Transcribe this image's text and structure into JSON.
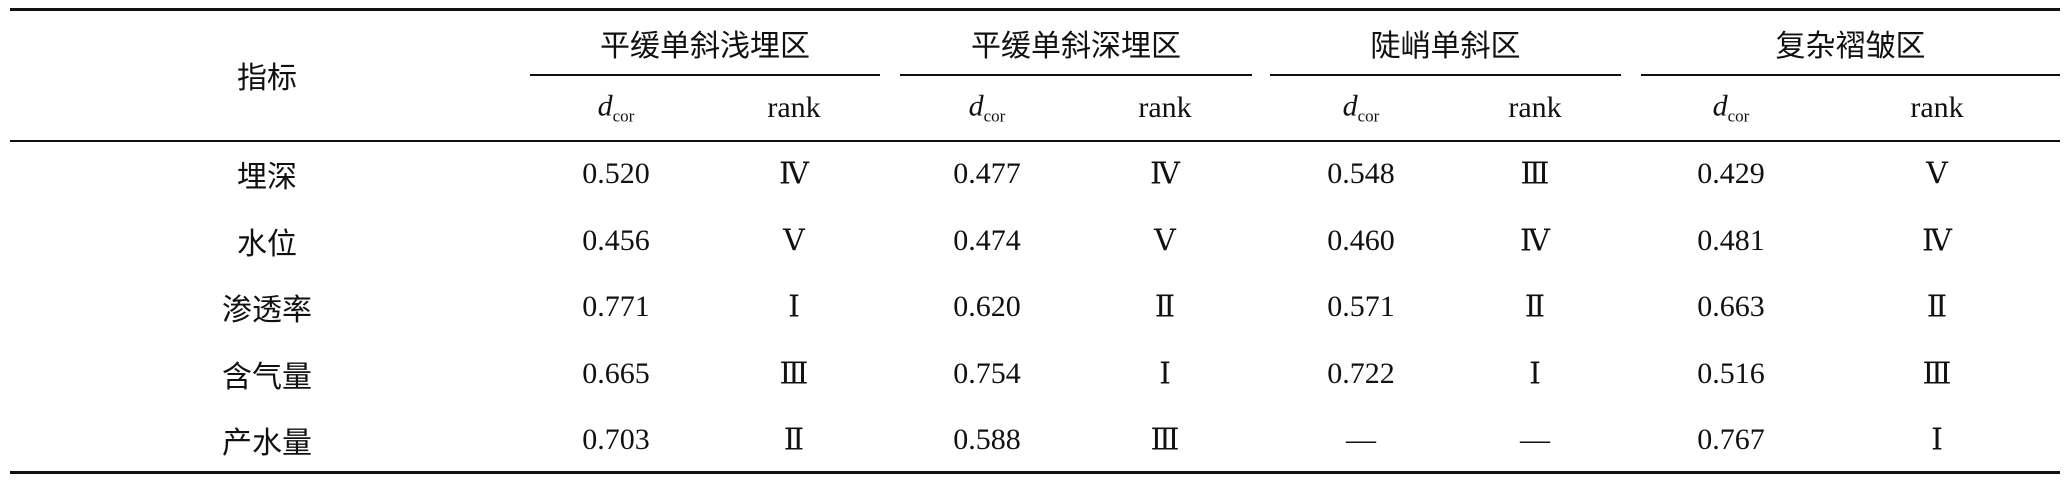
{
  "table": {
    "header": {
      "label": "指标"
    },
    "groups": [
      {
        "name": "平缓单斜浅埋区",
        "columns": [
          {
            "symbol": "d",
            "subscript": "cor"
          },
          {
            "label": "rank"
          }
        ]
      },
      {
        "name": "平缓单斜深埋区",
        "columns": [
          {
            "symbol": "d",
            "subscript": "cor"
          },
          {
            "label": "rank"
          }
        ]
      },
      {
        "name": "陡峭单斜区",
        "columns": [
          {
            "symbol": "d",
            "subscript": "cor"
          },
          {
            "label": "rank"
          }
        ]
      },
      {
        "name": "复杂褶皱区",
        "columns": [
          {
            "symbol": "d",
            "subscript": "cor"
          },
          {
            "label": "rank"
          }
        ]
      }
    ],
    "rows": [
      {
        "label": "埋深",
        "cells": [
          "0.520",
          "Ⅳ",
          "0.477",
          "Ⅳ",
          "0.548",
          "Ⅲ",
          "0.429",
          "Ⅴ"
        ]
      },
      {
        "label": "水位",
        "cells": [
          "0.456",
          "Ⅴ",
          "0.474",
          "Ⅴ",
          "0.460",
          "Ⅳ",
          "0.481",
          "Ⅳ"
        ]
      },
      {
        "label": "渗透率",
        "cells": [
          "0.771",
          "Ⅰ",
          "0.620",
          "Ⅱ",
          "0.571",
          "Ⅱ",
          "0.663",
          "Ⅱ"
        ]
      },
      {
        "label": "含气量",
        "cells": [
          "0.665",
          "Ⅲ",
          "0.754",
          "Ⅰ",
          "0.722",
          "Ⅰ",
          "0.516",
          "Ⅲ"
        ]
      },
      {
        "label": "产水量",
        "cells": [
          "0.703",
          "Ⅱ",
          "0.588",
          "Ⅲ",
          "—",
          "—",
          "0.767",
          "Ⅰ"
        ]
      }
    ]
  }
}
